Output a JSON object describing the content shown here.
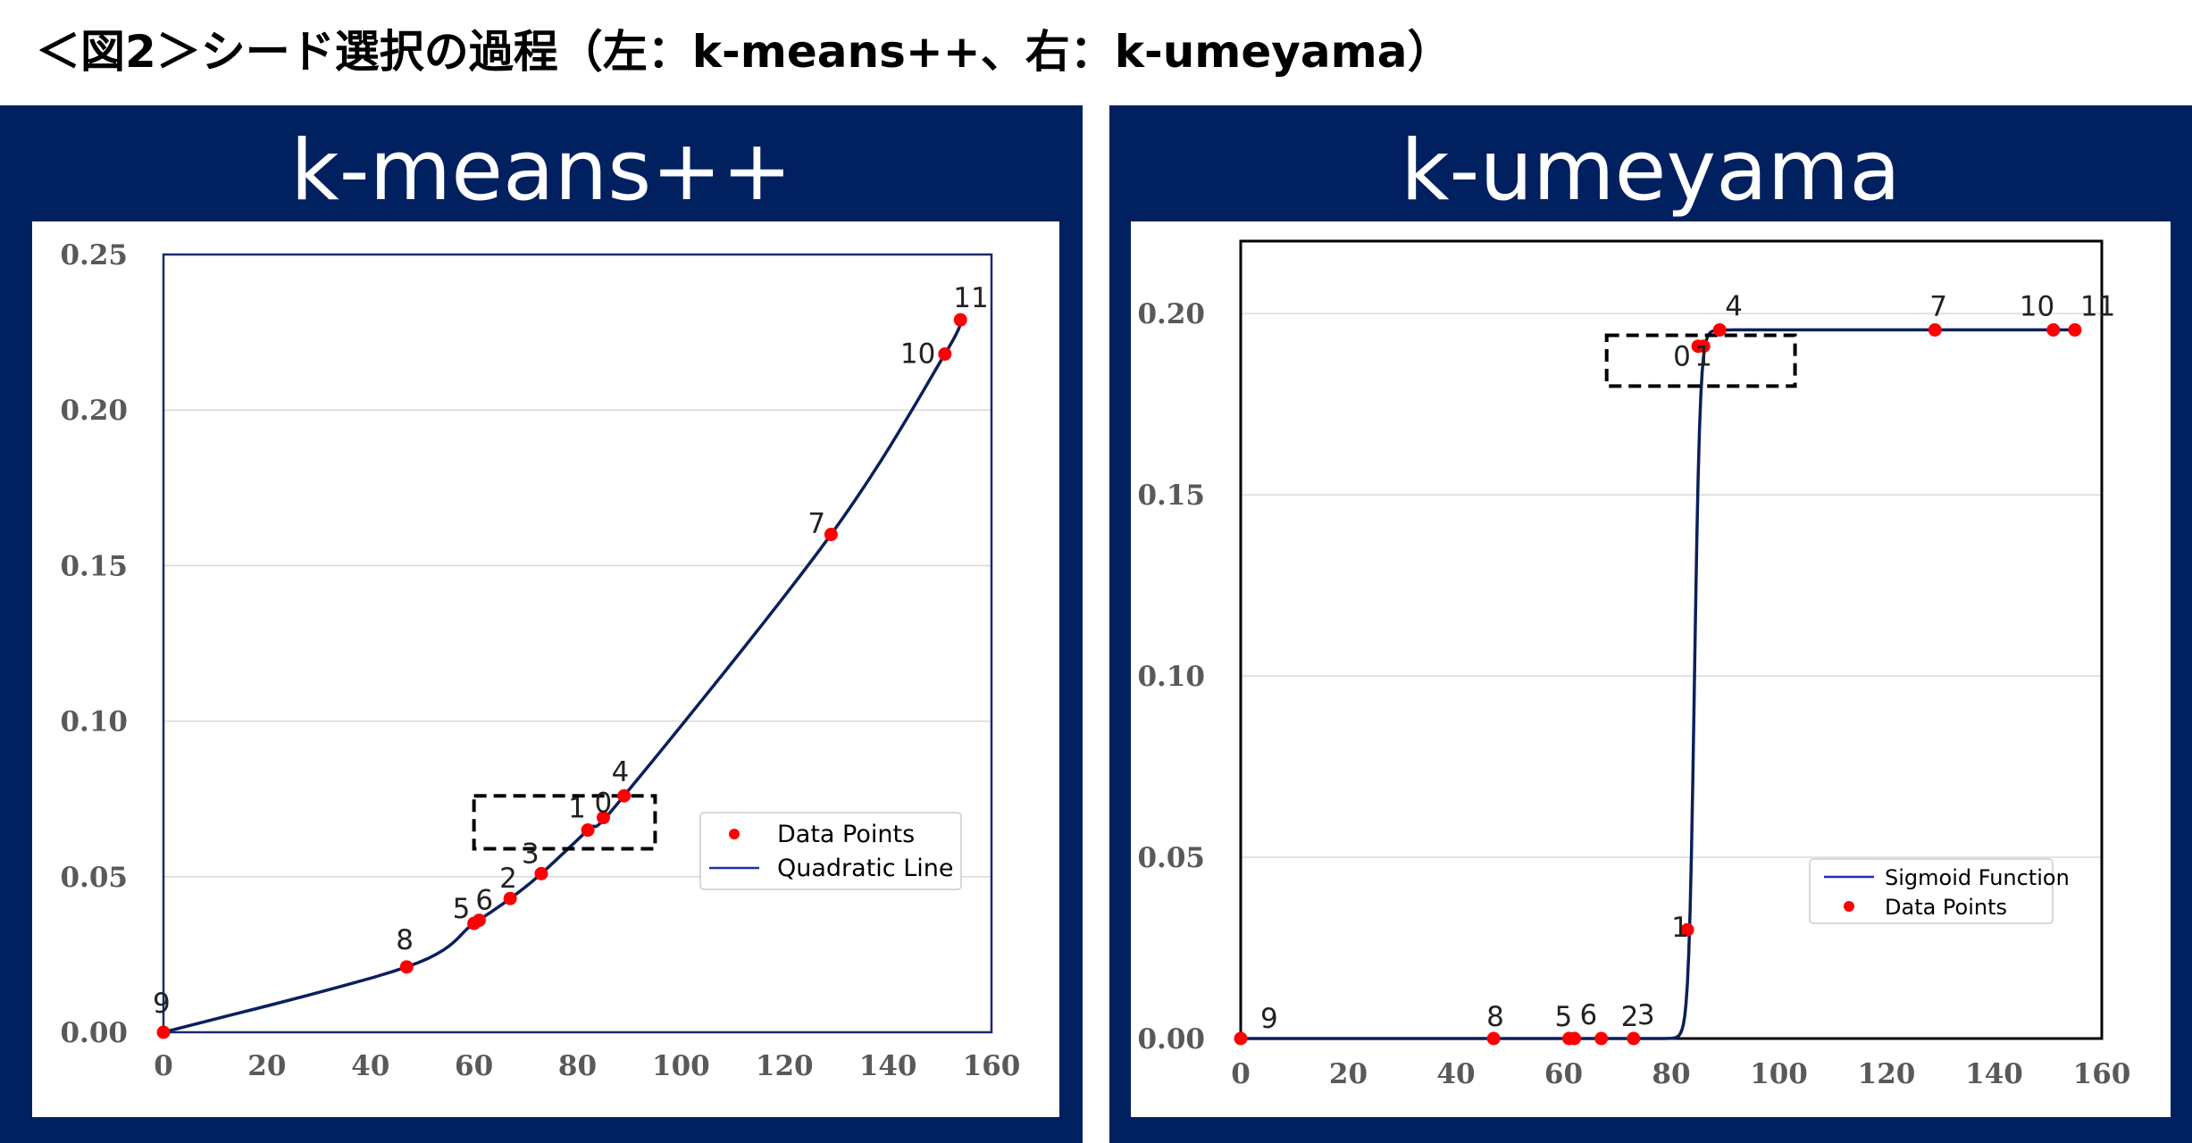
{
  "figure_title": "＜図2＞シード選択の過程（左：k-means++、右：k-umeyama）",
  "colors": {
    "panel_bg": "#002060",
    "curve": "#0b1f5c",
    "curve_right": "#0b1f5c",
    "points": "#ff0000",
    "grid": "#d9d9d9",
    "legend_line": "#1f2fa8"
  },
  "panels": [
    {
      "title": "k-means++",
      "chart_data": {
        "type": "line",
        "title": "k-means++",
        "xlim": [
          0,
          160
        ],
        "ylim": [
          0,
          0.25
        ],
        "x_ticks": [
          "0",
          "20",
          "40",
          "60",
          "80",
          "100",
          "120",
          "140",
          "160"
        ],
        "y_ticks": [
          "0.00",
          "0.05",
          "0.10",
          "0.15",
          "0.20",
          "0.25"
        ],
        "grid": "horizontal",
        "legend_position": "bottom-right",
        "legend": [
          "Data Points",
          "Quadratic Line"
        ],
        "points": [
          {
            "label": "9",
            "x": 0,
            "y": 0.0
          },
          {
            "label": "8",
            "x": 47,
            "y": 0.021
          },
          {
            "label": "5",
            "x": 60,
            "y": 0.035
          },
          {
            "label": "6",
            "x": 61,
            "y": 0.036
          },
          {
            "label": "2",
            "x": 67,
            "y": 0.043
          },
          {
            "label": "3",
            "x": 73,
            "y": 0.051
          },
          {
            "label": "1",
            "x": 82,
            "y": 0.065
          },
          {
            "label": "0",
            "x": 85,
            "y": 0.069
          },
          {
            "label": "4",
            "x": 89,
            "y": 0.076
          },
          {
            "label": "7",
            "x": 129,
            "y": 0.16
          },
          {
            "label": "10",
            "x": 151,
            "y": 0.218
          },
          {
            "label": "11",
            "x": 154,
            "y": 0.229
          }
        ],
        "highlight_box": {
          "x": [
            60,
            95
          ],
          "y": [
            0.059,
            0.076
          ]
        }
      }
    },
    {
      "title": "k-umeyama",
      "chart_data": {
        "type": "line",
        "title": "k-umeyama",
        "xlim": [
          0,
          160
        ],
        "ylim": [
          0,
          0.22
        ],
        "x_ticks": [
          "0",
          "20",
          "40",
          "60",
          "80",
          "100",
          "120",
          "140",
          "160"
        ],
        "y_ticks": [
          "0.00",
          "0.05",
          "0.10",
          "0.15",
          "0.20"
        ],
        "grid": "horizontal",
        "legend_position": "bottom-right",
        "legend": [
          "Sigmoid Function",
          "Data Points"
        ],
        "points": [
          {
            "label": "9",
            "x": 0,
            "y": 0.0
          },
          {
            "label": "8",
            "x": 47,
            "y": 0.0
          },
          {
            "label": "5",
            "x": 61,
            "y": 0.0
          },
          {
            "label": "6",
            "x": 62,
            "y": 0.0
          },
          {
            "label": "2",
            "x": 67,
            "y": 0.0
          },
          {
            "label": "3",
            "x": 73,
            "y": 0.0
          },
          {
            "label": "1",
            "x": 83,
            "y": 0.03
          },
          {
            "label": "0",
            "x": 85,
            "y": 0.191
          },
          {
            "label": "1",
            "x": 86,
            "y": 0.191
          },
          {
            "label": "4",
            "x": 89,
            "y": 0.1955
          },
          {
            "label": "7",
            "x": 129,
            "y": 0.1955
          },
          {
            "label": "10",
            "x": 151,
            "y": 0.1955
          },
          {
            "label": "11",
            "x": 155,
            "y": 0.1955
          }
        ],
        "highlight_box": {
          "x": [
            68,
            103
          ],
          "y": [
            0.18,
            0.194
          ]
        }
      }
    }
  ]
}
